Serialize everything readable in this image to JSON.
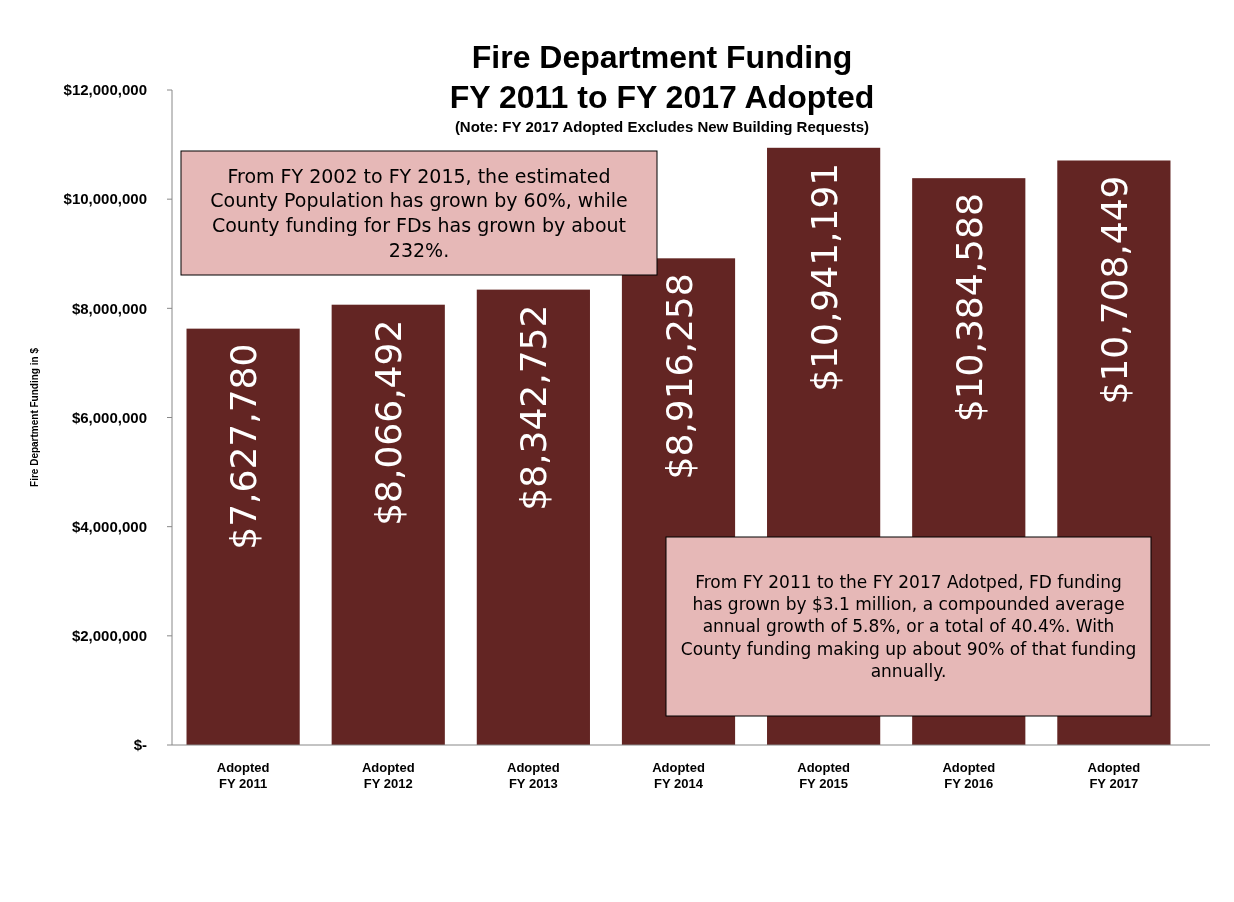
{
  "chart_data": {
    "type": "bar",
    "title": "Fire Department Funding\nFY 2011 to FY 2017 Adopted",
    "subtitle": "(Note: FY 2017 Adopted Excludes New Building Requests)",
    "ylabel": "Fire Department Funding in $",
    "categories": [
      "Adopted FY 2011",
      "Adopted FY 2012",
      "Adopted FY 2013",
      "Adopted FY 2014",
      "Adopted FY 2015",
      "Adopted FY 2016",
      "Adopted FY 2017"
    ],
    "values": [
      7627780,
      8066492,
      8342752,
      8916258,
      10941191,
      10384588,
      10708449
    ],
    "color": "#632523",
    "grid": false,
    "value_labels": [
      "$7,627,780",
      "$8,066,492",
      "$8,342,752",
      "$8,916,258",
      "$10,941,191",
      "$10,384,588",
      "$10,708,449"
    ],
    "ylim": [
      0,
      12000000
    ],
    "yticks": [
      {
        "value": 0,
        "label": "$-"
      },
      {
        "value": 2000000,
        "label": "$2,000,000"
      },
      {
        "value": 4000000,
        "label": "$4,000,000"
      },
      {
        "value": 6000000,
        "label": "$6,000,000"
      },
      {
        "value": 8000000,
        "label": "$8,000,000"
      },
      {
        "value": 10000000,
        "label": "$10,000,000"
      },
      {
        "value": 12000000,
        "label": "$12,000,000"
      }
    ],
    "annotations": [
      "From FY 2002 to FY 2015, the estimated County Population has grown by 60%, while County funding for FDs has grown by about 232%.",
      "From FY 2011 to the FY 2017 Adotped, FD funding has grown by $3.1 million, a compounded average annual growth of 5.8%, or a total of 40.4%. With County funding making up about 90% of that funding annually."
    ]
  }
}
